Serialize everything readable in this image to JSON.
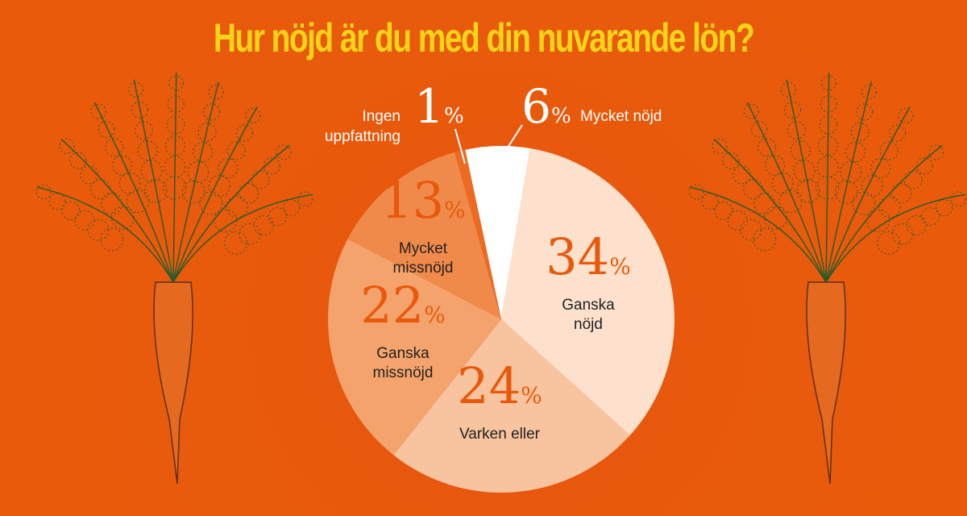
{
  "chart_data": {
    "type": "pie",
    "title": "Hur nöjd är du med din nuvarande lön?",
    "slices": [
      {
        "label": "Mycket nöjd",
        "value": 6,
        "color": "#ffffff"
      },
      {
        "label": "Ganska nöjd",
        "value": 34,
        "color": "#fde1cd"
      },
      {
        "label": "Varken eller",
        "value": 24,
        "color": "#f8c49f"
      },
      {
        "label": "Ganska missnöjd",
        "value": 22,
        "color": "#f4a36c"
      },
      {
        "label": "Mycket missnöjd",
        "value": 13,
        "color": "#f08a4a"
      },
      {
        "label": "Ingen uppfattning",
        "value": 1,
        "color": "#ec6a22"
      }
    ],
    "percent_sign": "%",
    "background": "#e8590c",
    "title_color": "#f7d417"
  }
}
